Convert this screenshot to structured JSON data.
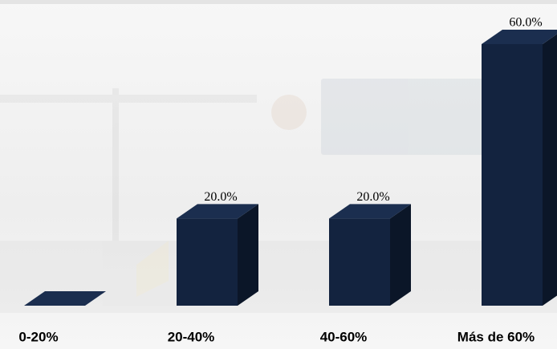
{
  "chart_data": {
    "type": "bar3d",
    "categories": [
      "0-20%",
      "20-40%",
      "40-60%",
      "Más de 60%"
    ],
    "values": [
      0,
      20,
      20,
      60
    ],
    "value_labels": [
      null,
      "20.0%",
      "20.0%",
      "60.0%"
    ],
    "color": "#13233f"
  }
}
